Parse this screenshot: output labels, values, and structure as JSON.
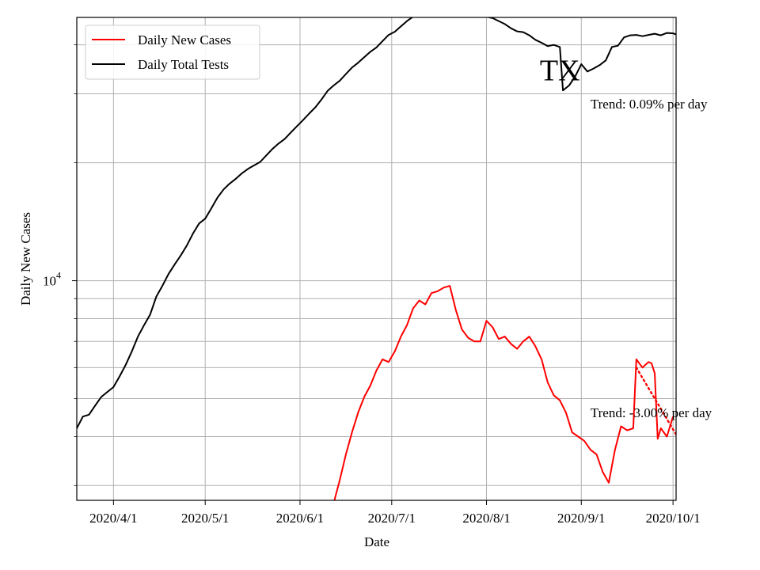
{
  "chart_data": {
    "type": "line",
    "title": "",
    "xlabel": "Date",
    "ylabel": "Daily New Cases",
    "yscale": "log",
    "ylim": [
      2750,
      47000
    ],
    "xlim": [
      "2020-03-20",
      "2020-10-02"
    ],
    "grid": true,
    "legend_position": "upper-left",
    "x_ticks": [
      {
        "date": "2020-04-01",
        "label": "2020/4/1"
      },
      {
        "date": "2020-05-01",
        "label": "2020/5/1"
      },
      {
        "date": "2020-06-01",
        "label": "2020/6/1"
      },
      {
        "date": "2020-07-01",
        "label": "2020/7/1"
      },
      {
        "date": "2020-08-01",
        "label": "2020/8/1"
      },
      {
        "date": "2020-09-01",
        "label": "2020/9/1"
      },
      {
        "date": "2020-10-01",
        "label": "2020/10/1"
      }
    ],
    "y_major_ticks": [
      {
        "value": 10000,
        "base": "10",
        "exp": "4"
      }
    ],
    "y_minor_ticks": [
      3000,
      4000,
      5000,
      6000,
      7000,
      8000,
      9000,
      20000,
      30000,
      40000
    ],
    "series": [
      {
        "name": "Daily New Cases",
        "color": "#ff0000",
        "style": "solid",
        "points": [
          [
            "2020-06-12",
            2700
          ],
          [
            "2020-06-14",
            3100
          ],
          [
            "2020-06-16",
            3600
          ],
          [
            "2020-06-18",
            4100
          ],
          [
            "2020-06-20",
            4600
          ],
          [
            "2020-06-22",
            5050
          ],
          [
            "2020-06-24",
            5400
          ],
          [
            "2020-06-26",
            5900
          ],
          [
            "2020-06-28",
            6300
          ],
          [
            "2020-06-30",
            6200
          ],
          [
            "2020-07-02",
            6600
          ],
          [
            "2020-07-04",
            7200
          ],
          [
            "2020-07-06",
            7700
          ],
          [
            "2020-07-08",
            8500
          ],
          [
            "2020-07-10",
            8900
          ],
          [
            "2020-07-12",
            8700
          ],
          [
            "2020-07-14",
            9300
          ],
          [
            "2020-07-16",
            9400
          ],
          [
            "2020-07-18",
            9600
          ],
          [
            "2020-07-20",
            9700
          ],
          [
            "2020-07-22",
            8400
          ],
          [
            "2020-07-24",
            7500
          ],
          [
            "2020-07-26",
            7150
          ],
          [
            "2020-07-28",
            7000
          ],
          [
            "2020-07-30",
            7000
          ],
          [
            "2020-08-01",
            7900
          ],
          [
            "2020-08-03",
            7600
          ],
          [
            "2020-08-05",
            7100
          ],
          [
            "2020-08-07",
            7200
          ],
          [
            "2020-08-09",
            6900
          ],
          [
            "2020-08-11",
            6700
          ],
          [
            "2020-08-13",
            7000
          ],
          [
            "2020-08-15",
            7200
          ],
          [
            "2020-08-17",
            6800
          ],
          [
            "2020-08-19",
            6300
          ],
          [
            "2020-08-21",
            5500
          ],
          [
            "2020-08-23",
            5100
          ],
          [
            "2020-08-25",
            4950
          ],
          [
            "2020-08-27",
            4600
          ],
          [
            "2020-08-29",
            4100
          ],
          [
            "2020-08-31",
            4000
          ],
          [
            "2020-09-02",
            3900
          ],
          [
            "2020-09-04",
            3700
          ],
          [
            "2020-09-06",
            3600
          ],
          [
            "2020-09-08",
            3250
          ],
          [
            "2020-09-10",
            3050
          ],
          [
            "2020-09-12",
            3700
          ],
          [
            "2020-09-14",
            4250
          ],
          [
            "2020-09-16",
            4150
          ],
          [
            "2020-09-18",
            4200
          ],
          [
            "2020-09-19",
            6300
          ],
          [
            "2020-09-21",
            6000
          ],
          [
            "2020-09-23",
            6200
          ],
          [
            "2020-09-24",
            6150
          ],
          [
            "2020-09-25",
            5800
          ],
          [
            "2020-09-26",
            3950
          ],
          [
            "2020-09-27",
            4200
          ],
          [
            "2020-09-29",
            4000
          ],
          [
            "2020-10-01",
            4500
          ]
        ]
      },
      {
        "name": "Daily Total Tests",
        "color": "#000000",
        "style": "solid",
        "points": [
          [
            "2020-03-20",
            4200
          ],
          [
            "2020-03-22",
            4500
          ],
          [
            "2020-03-24",
            4550
          ],
          [
            "2020-03-26",
            4800
          ],
          [
            "2020-03-28",
            5050
          ],
          [
            "2020-03-30",
            5200
          ],
          [
            "2020-04-01",
            5350
          ],
          [
            "2020-04-03",
            5700
          ],
          [
            "2020-04-05",
            6100
          ],
          [
            "2020-04-07",
            6600
          ],
          [
            "2020-04-09",
            7200
          ],
          [
            "2020-04-11",
            7700
          ],
          [
            "2020-04-13",
            8200
          ],
          [
            "2020-04-15",
            9100
          ],
          [
            "2020-04-17",
            9700
          ],
          [
            "2020-04-19",
            10400
          ],
          [
            "2020-04-21",
            11000
          ],
          [
            "2020-04-23",
            11600
          ],
          [
            "2020-04-25",
            12300
          ],
          [
            "2020-04-27",
            13200
          ],
          [
            "2020-04-29",
            14000
          ],
          [
            "2020-05-01",
            14400
          ],
          [
            "2020-05-03",
            15300
          ],
          [
            "2020-05-05",
            16300
          ],
          [
            "2020-05-07",
            17100
          ],
          [
            "2020-05-09",
            17700
          ],
          [
            "2020-05-11",
            18200
          ],
          [
            "2020-05-13",
            18800
          ],
          [
            "2020-05-15",
            19300
          ],
          [
            "2020-05-17",
            19700
          ],
          [
            "2020-05-19",
            20100
          ],
          [
            "2020-05-21",
            20900
          ],
          [
            "2020-05-23",
            21700
          ],
          [
            "2020-05-25",
            22400
          ],
          [
            "2020-05-27",
            23000
          ],
          [
            "2020-05-29",
            23900
          ],
          [
            "2020-05-31",
            24800
          ],
          [
            "2020-06-02",
            25700
          ],
          [
            "2020-06-04",
            26700
          ],
          [
            "2020-06-06",
            27700
          ],
          [
            "2020-06-08",
            29000
          ],
          [
            "2020-06-10",
            30500
          ],
          [
            "2020-06-12",
            31500
          ],
          [
            "2020-06-14",
            32400
          ],
          [
            "2020-06-16",
            33700
          ],
          [
            "2020-06-18",
            35000
          ],
          [
            "2020-06-20",
            36000
          ],
          [
            "2020-06-22",
            37200
          ],
          [
            "2020-06-24",
            38400
          ],
          [
            "2020-06-26",
            39400
          ],
          [
            "2020-06-28",
            40900
          ],
          [
            "2020-06-30",
            42400
          ],
          [
            "2020-07-02",
            43200
          ],
          [
            "2020-07-04",
            44600
          ],
          [
            "2020-07-06",
            46000
          ],
          [
            "2020-07-08",
            47200
          ],
          [
            "2020-07-10",
            48200
          ],
          [
            "2020-07-12",
            49000
          ],
          [
            "2020-07-14",
            49700
          ],
          [
            "2020-07-16",
            50000
          ],
          [
            "2020-07-18",
            49800
          ],
          [
            "2020-07-20",
            49400
          ],
          [
            "2020-07-22",
            48700
          ],
          [
            "2020-07-24",
            47800
          ],
          [
            "2020-07-26",
            47400
          ],
          [
            "2020-07-28",
            48600
          ],
          [
            "2020-07-30",
            47800
          ],
          [
            "2020-08-01",
            47200
          ],
          [
            "2020-08-03",
            46800
          ],
          [
            "2020-08-05",
            46000
          ],
          [
            "2020-08-07",
            45200
          ],
          [
            "2020-08-09",
            44100
          ],
          [
            "2020-08-11",
            43300
          ],
          [
            "2020-08-13",
            43100
          ],
          [
            "2020-08-15",
            42300
          ],
          [
            "2020-08-17",
            41200
          ],
          [
            "2020-08-19",
            40500
          ],
          [
            "2020-08-21",
            39700
          ],
          [
            "2020-08-23",
            40000
          ],
          [
            "2020-08-25",
            39500
          ],
          [
            "2020-08-26",
            30600
          ],
          [
            "2020-08-28",
            31500
          ],
          [
            "2020-08-30",
            33200
          ],
          [
            "2020-09-01",
            35700
          ],
          [
            "2020-09-03",
            34200
          ],
          [
            "2020-09-05",
            34800
          ],
          [
            "2020-09-07",
            35500
          ],
          [
            "2020-09-09",
            36500
          ],
          [
            "2020-09-11",
            39500
          ],
          [
            "2020-09-13",
            39800
          ],
          [
            "2020-09-15",
            41800
          ],
          [
            "2020-09-17",
            42300
          ],
          [
            "2020-09-19",
            42400
          ],
          [
            "2020-09-21",
            42100
          ],
          [
            "2020-09-23",
            42400
          ],
          [
            "2020-09-25",
            42700
          ],
          [
            "2020-09-27",
            42300
          ],
          [
            "2020-09-29",
            42900
          ],
          [
            "2020-10-01",
            42800
          ],
          [
            "2020-10-02",
            42500
          ]
        ]
      },
      {
        "name": "",
        "color": "#ff0000",
        "style": "dotted",
        "points": [
          [
            "2020-09-19",
            6000
          ],
          [
            "2020-10-02",
            4050
          ]
        ]
      }
    ],
    "legend": [
      {
        "label": "Daily New Cases",
        "color": "#ff0000"
      },
      {
        "label": "Daily Total Tests",
        "color": "#000000"
      }
    ],
    "annotations": [
      {
        "text": "TX",
        "date": "2020-08-25",
        "value": 32500,
        "size": "large",
        "anchor": "middle"
      },
      {
        "text": "Trend: 0.09% per day",
        "date": "2020-09-04",
        "value": 27500,
        "size": "normal",
        "anchor": "start"
      },
      {
        "text": "Trend: -3.00% per day",
        "date": "2020-09-04",
        "value": 4480,
        "size": "normal",
        "anchor": "start"
      }
    ]
  }
}
